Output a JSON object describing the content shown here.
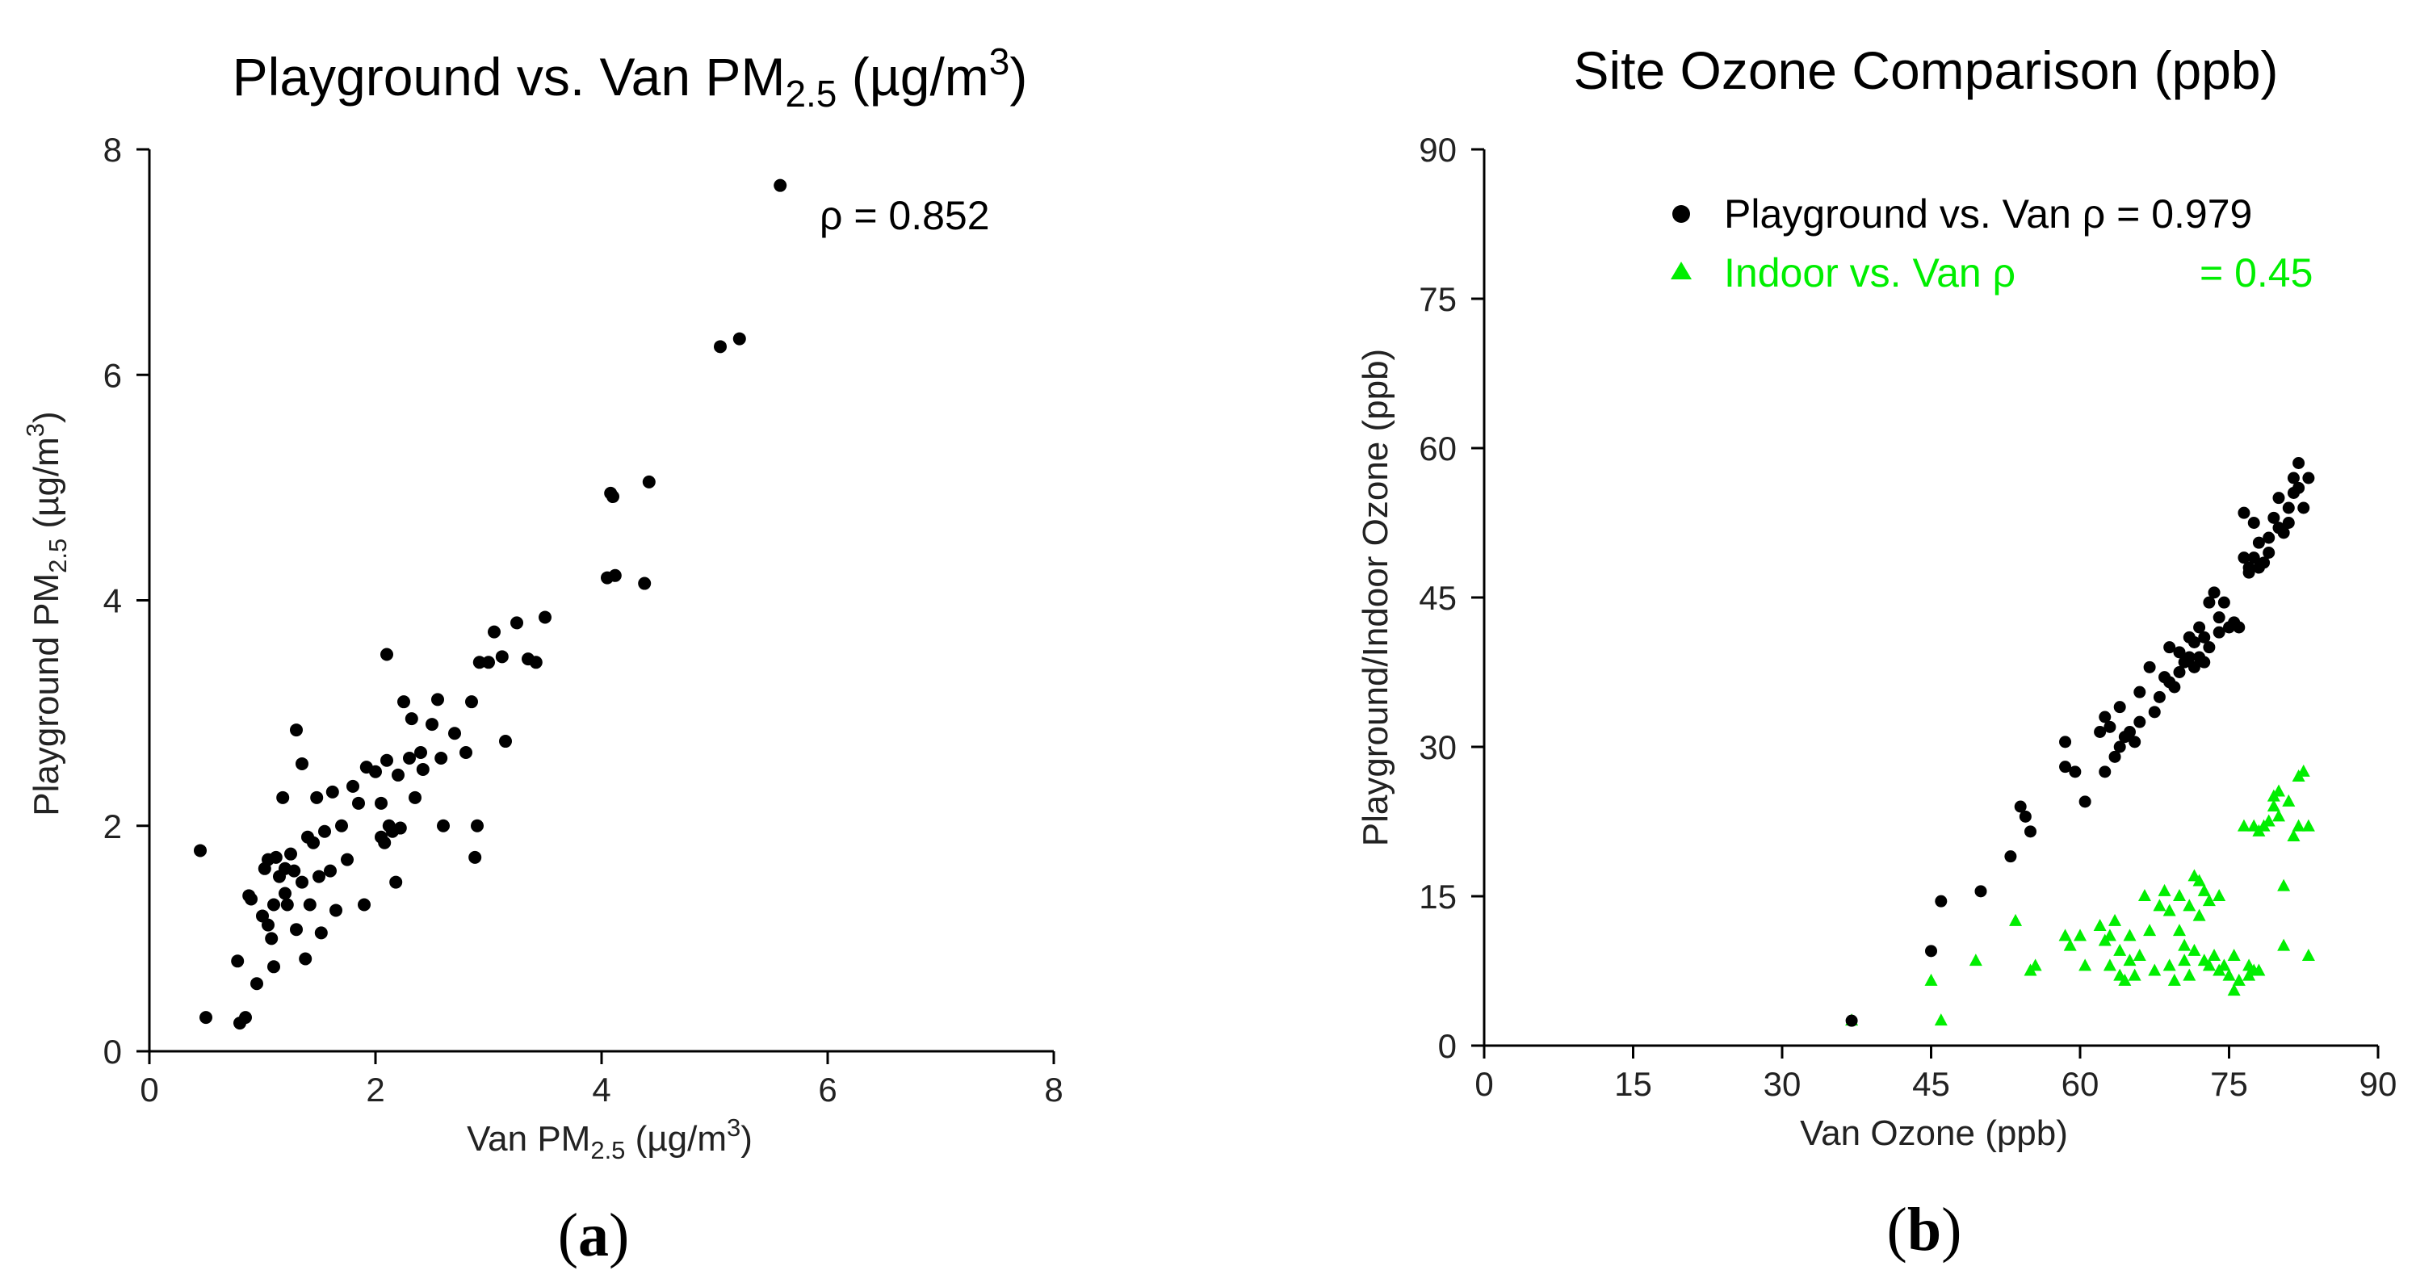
{
  "figure": {
    "panels": [
      {
        "id": "a",
        "label_open": "(",
        "label_letter": "a",
        "label_close": ")"
      },
      {
        "id": "b",
        "label_open": "(",
        "label_letter": "b",
        "label_close": ")"
      }
    ]
  },
  "chart_data": [
    {
      "type": "scatter",
      "title": "Playground vs. Van PM",
      "title_sub": "2.5",
      "title_unit": " (µg/m",
      "title_sup": "3",
      "title_end": ")",
      "xlabel": "Van PM",
      "xlabel_sub": "2.5",
      "xlabel_unit": " (µg/m",
      "xlabel_sup": "3",
      "xlabel_end": ")",
      "ylabel": "Playground PM",
      "ylabel_sub": "2.5",
      "ylabel_unit": " (µg/m",
      "ylabel_sup": "3",
      "ylabel_end": ")",
      "xlim": [
        0,
        8
      ],
      "ylim": [
        0,
        8
      ],
      "xticks": [
        0,
        2,
        4,
        6,
        8
      ],
      "yticks": [
        0,
        2,
        4,
        6,
        8
      ],
      "annotation": "ρ = 0.852",
      "colors": {
        "points": "#000000"
      },
      "series": [
        {
          "name": "Playground vs. Van",
          "points": [
            [
              0.45,
              1.78
            ],
            [
              0.5,
              0.3
            ],
            [
              0.78,
              0.8
            ],
            [
              0.8,
              0.25
            ],
            [
              0.85,
              0.3
            ],
            [
              0.88,
              1.38
            ],
            [
              0.9,
              1.35
            ],
            [
              0.95,
              0.6
            ],
            [
              1.0,
              1.2
            ],
            [
              1.02,
              1.62
            ],
            [
              1.05,
              1.7
            ],
            [
              1.05,
              1.12
            ],
            [
              1.08,
              1.0
            ],
            [
              1.1,
              1.3
            ],
            [
              1.1,
              0.75
            ],
            [
              1.12,
              1.72
            ],
            [
              1.15,
              1.55
            ],
            [
              1.18,
              2.25
            ],
            [
              1.2,
              1.4
            ],
            [
              1.2,
              1.62
            ],
            [
              1.22,
              1.3
            ],
            [
              1.25,
              1.75
            ],
            [
              1.28,
              1.6
            ],
            [
              1.3,
              2.85
            ],
            [
              1.3,
              1.08
            ],
            [
              1.35,
              2.55
            ],
            [
              1.35,
              1.5
            ],
            [
              1.38,
              0.82
            ],
            [
              1.4,
              1.9
            ],
            [
              1.42,
              1.3
            ],
            [
              1.45,
              1.85
            ],
            [
              1.48,
              2.25
            ],
            [
              1.5,
              1.55
            ],
            [
              1.52,
              1.05
            ],
            [
              1.55,
              1.95
            ],
            [
              1.6,
              1.6
            ],
            [
              1.62,
              2.3
            ],
            [
              1.65,
              1.25
            ],
            [
              1.7,
              2.0
            ],
            [
              1.75,
              1.7
            ],
            [
              1.8,
              2.35
            ],
            [
              1.85,
              2.2
            ],
            [
              1.9,
              1.3
            ],
            [
              1.92,
              2.52
            ],
            [
              2.0,
              2.48
            ],
            [
              2.05,
              2.2
            ],
            [
              2.05,
              1.9
            ],
            [
              2.08,
              1.85
            ],
            [
              2.1,
              3.52
            ],
            [
              2.1,
              2.58
            ],
            [
              2.12,
              2.0
            ],
            [
              2.15,
              1.95
            ],
            [
              2.18,
              1.5
            ],
            [
              2.2,
              2.45
            ],
            [
              2.22,
              1.98
            ],
            [
              2.25,
              3.1
            ],
            [
              2.3,
              2.6
            ],
            [
              2.32,
              2.95
            ],
            [
              2.35,
              2.25
            ],
            [
              2.4,
              2.65
            ],
            [
              2.42,
              2.5
            ],
            [
              2.5,
              2.9
            ],
            [
              2.55,
              3.12
            ],
            [
              2.58,
              2.6
            ],
            [
              2.6,
              2.0
            ],
            [
              2.7,
              2.82
            ],
            [
              2.8,
              2.65
            ],
            [
              2.85,
              3.1
            ],
            [
              2.88,
              1.72
            ],
            [
              2.9,
              2.0
            ],
            [
              2.92,
              3.45
            ],
            [
              3.0,
              3.45
            ],
            [
              3.05,
              3.72
            ],
            [
              3.12,
              3.5
            ],
            [
              3.15,
              2.75
            ],
            [
              3.25,
              3.8
            ],
            [
              3.35,
              3.48
            ],
            [
              3.42,
              3.45
            ],
            [
              3.5,
              3.85
            ],
            [
              4.05,
              4.2
            ],
            [
              4.08,
              4.95
            ],
            [
              4.1,
              4.92
            ],
            [
              4.12,
              4.22
            ],
            [
              4.38,
              4.15
            ],
            [
              4.42,
              5.05
            ],
            [
              5.05,
              6.25
            ],
            [
              5.22,
              6.32
            ],
            [
              5.58,
              7.68
            ]
          ]
        }
      ]
    },
    {
      "type": "scatter",
      "title": "Site Ozone Comparison (ppb)",
      "xlabel": "Van Ozone (ppb)",
      "ylabel": "Playground/Indoor Ozone (ppb)",
      "xlim": [
        0,
        90
      ],
      "ylim": [
        0,
        90
      ],
      "xticks": [
        0,
        15,
        30,
        45,
        60,
        75,
        90
      ],
      "yticks": [
        0,
        15,
        30,
        45,
        60,
        75,
        90
      ],
      "colors": {
        "playground": "#000000",
        "indoor": "#00ee00"
      },
      "series": [
        {
          "name": "Playground vs. Van",
          "legend_text": "Playground vs. Van ρ = 0.979",
          "marker": "circle",
          "points": [
            [
              37,
              2.5
            ],
            [
              45,
              9.5
            ],
            [
              46,
              14.5
            ],
            [
              50,
              15.5
            ],
            [
              53,
              19
            ],
            [
              54,
              24
            ],
            [
              54.5,
              23
            ],
            [
              55,
              21.5
            ],
            [
              58.5,
              30.5
            ],
            [
              58.5,
              28
            ],
            [
              59.5,
              27.5
            ],
            [
              60.5,
              24.5
            ],
            [
              62,
              31.5
            ],
            [
              62.5,
              33
            ],
            [
              62.5,
              27.5
            ],
            [
              63,
              32
            ],
            [
              63.5,
              29
            ],
            [
              64,
              34
            ],
            [
              64,
              30
            ],
            [
              64.5,
              31
            ],
            [
              65,
              31.5
            ],
            [
              65.5,
              30.5
            ],
            [
              66,
              32.5
            ],
            [
              66,
              35.5
            ],
            [
              67,
              38
            ],
            [
              67.5,
              33.5
            ],
            [
              68,
              35
            ],
            [
              68.5,
              37
            ],
            [
              69,
              40
            ],
            [
              69,
              36.5
            ],
            [
              69.5,
              36
            ],
            [
              70,
              39.5
            ],
            [
              70,
              37.5
            ],
            [
              70.5,
              38.5
            ],
            [
              71,
              41
            ],
            [
              71,
              39
            ],
            [
              71.5,
              38
            ],
            [
              71.5,
              40.5
            ],
            [
              72,
              42
            ],
            [
              72,
              39
            ],
            [
              72.5,
              41
            ],
            [
              72.5,
              38.5
            ],
            [
              73,
              44.5
            ],
            [
              73,
              40
            ],
            [
              73.5,
              45.5
            ],
            [
              74,
              43
            ],
            [
              74,
              41.5
            ],
            [
              74.5,
              44.5
            ],
            [
              75,
              42
            ],
            [
              75.5,
              42.5
            ],
            [
              76,
              42
            ],
            [
              76.5,
              49
            ],
            [
              76.5,
              53.5
            ],
            [
              77,
              48
            ],
            [
              77,
              47.5
            ],
            [
              77.5,
              52.5
            ],
            [
              77.5,
              49
            ],
            [
              78,
              50.5
            ],
            [
              78,
              48
            ],
            [
              78.5,
              48.5
            ],
            [
              79,
              51
            ],
            [
              79,
              49.5
            ],
            [
              79.5,
              53
            ],
            [
              80,
              52
            ],
            [
              80,
              55
            ],
            [
              80.5,
              51.5
            ],
            [
              81,
              54
            ],
            [
              81,
              52.5
            ],
            [
              81.5,
              57
            ],
            [
              81.5,
              55.5
            ],
            [
              82,
              58.5
            ],
            [
              82,
              56
            ],
            [
              82.5,
              54
            ],
            [
              83,
              57
            ]
          ]
        },
        {
          "name": "Indoor vs. Van",
          "legend_text": "Indoor vs. Van ρ",
          "legend_value": "= 0.45",
          "marker": "triangle",
          "points": [
            [
              37,
              2.5
            ],
            [
              45,
              6.5
            ],
            [
              46,
              2.5
            ],
            [
              49.5,
              8.5
            ],
            [
              53.5,
              12.5
            ],
            [
              55,
              7.5
            ],
            [
              55.5,
              8
            ],
            [
              58.5,
              11
            ],
            [
              59,
              10
            ],
            [
              60,
              11
            ],
            [
              60.5,
              8
            ],
            [
              62,
              12
            ],
            [
              62.5,
              10.5
            ],
            [
              63,
              11
            ],
            [
              63,
              8
            ],
            [
              63.5,
              12.5
            ],
            [
              64,
              9.5
            ],
            [
              64,
              7
            ],
            [
              64.5,
              6.5
            ],
            [
              65,
              11
            ],
            [
              65,
              8.5
            ],
            [
              65.5,
              7
            ],
            [
              66,
              9
            ],
            [
              66.5,
              15
            ],
            [
              67,
              11.5
            ],
            [
              67.5,
              7.5
            ],
            [
              68,
              14
            ],
            [
              68.5,
              15.5
            ],
            [
              69,
              13.5
            ],
            [
              69,
              8
            ],
            [
              69.5,
              6.5
            ],
            [
              70,
              11.5
            ],
            [
              70,
              15
            ],
            [
              70.5,
              10
            ],
            [
              70.5,
              8.5
            ],
            [
              71,
              7
            ],
            [
              71,
              14
            ],
            [
              71.5,
              17
            ],
            [
              71.5,
              9.5
            ],
            [
              72,
              16.5
            ],
            [
              72,
              13
            ],
            [
              72.5,
              15.5
            ],
            [
              72.5,
              8.5
            ],
            [
              73,
              14.5
            ],
            [
              73,
              8
            ],
            [
              73.5,
              9
            ],
            [
              74,
              15
            ],
            [
              74,
              7.5
            ],
            [
              74.5,
              8
            ],
            [
              75,
              7
            ],
            [
              75.5,
              9
            ],
            [
              75.5,
              5.5
            ],
            [
              76,
              6.5
            ],
            [
              76.5,
              22
            ],
            [
              77,
              8
            ],
            [
              77,
              7
            ],
            [
              77.5,
              22
            ],
            [
              77.5,
              7.5
            ],
            [
              78,
              21.5
            ],
            [
              78,
              7.5
            ],
            [
              78.5,
              22
            ],
            [
              79,
              22.5
            ],
            [
              79.5,
              25
            ],
            [
              79.5,
              24
            ],
            [
              80,
              23
            ],
            [
              80,
              25.5
            ],
            [
              80.5,
              16
            ],
            [
              80.5,
              10
            ],
            [
              81,
              24.5
            ],
            [
              81.5,
              21
            ],
            [
              82,
              27
            ],
            [
              82,
              22
            ],
            [
              82.5,
              27.5
            ],
            [
              83,
              22
            ],
            [
              83,
              9
            ]
          ]
        }
      ]
    }
  ]
}
